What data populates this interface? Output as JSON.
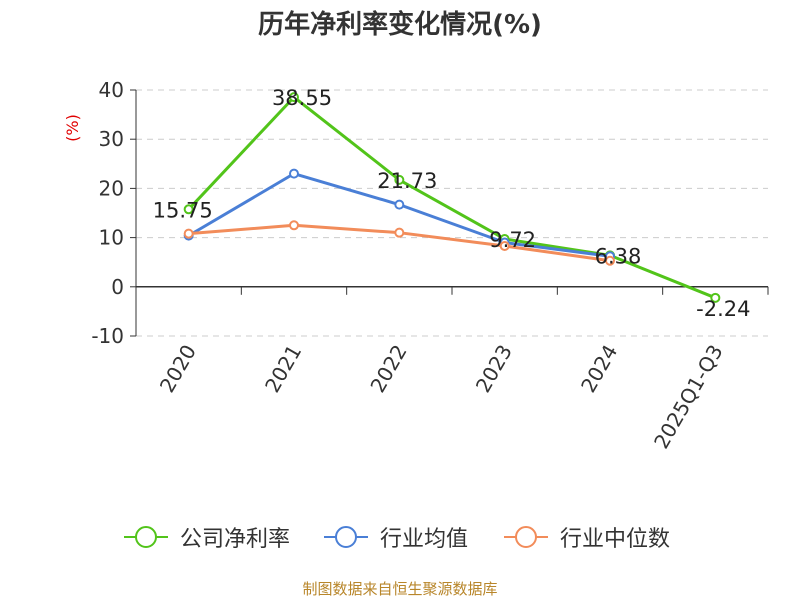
{
  "chart_data": {
    "type": "line",
    "title": "历年净利率变化情况(%)",
    "ylabel": "(%)",
    "xlabel": "",
    "categories": [
      "2020",
      "2021",
      "2022",
      "2023",
      "2024",
      "2025Q1-Q3"
    ],
    "y_ticks": [
      "40",
      "30",
      "20",
      "10",
      "0",
      "-10"
    ],
    "ylim": [
      -10,
      40
    ],
    "grid": "horizontal-dashed",
    "legend_placement": "bottom-center",
    "series": [
      {
        "name": "公司净利率",
        "color": "#52c41a",
        "values": [
          15.75,
          38.55,
          21.73,
          9.72,
          6.38,
          -2.24
        ],
        "labels": [
          "15.75",
          "38.55",
          "21.73",
          "9.72",
          "6.38",
          "-2.24"
        ]
      },
      {
        "name": "行业均值",
        "color": "#4a7fd6",
        "values": [
          10.4,
          23.0,
          16.7,
          9.0,
          6.2,
          null
        ]
      },
      {
        "name": "行业中位数",
        "color": "#f28c5a",
        "values": [
          10.8,
          12.5,
          11.0,
          8.3,
          5.3,
          null
        ]
      }
    ]
  },
  "footer": {
    "source": "制图数据来自恒生聚源数据库"
  }
}
